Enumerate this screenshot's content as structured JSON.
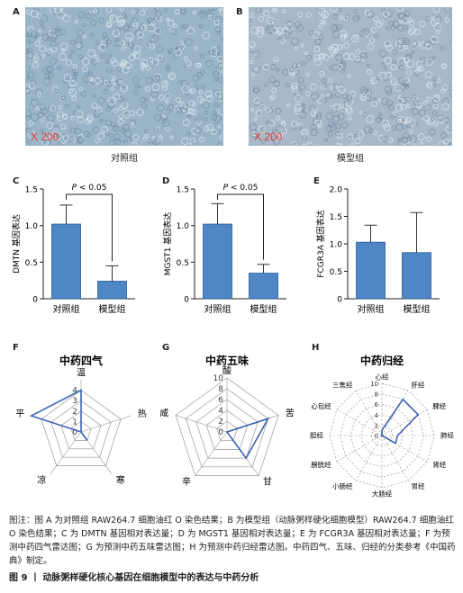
{
  "panels": {
    "A": {
      "letter": "A",
      "magnification": "X 200",
      "label": "对照组"
    },
    "B": {
      "letter": "B",
      "magnification": "X 200",
      "label": "模型组"
    }
  },
  "colors": {
    "bar": "#4f86c6",
    "bar_edge": "#2a5a99",
    "radar": "#3c63b0",
    "grid": "#999999",
    "mag": "#e23b3b",
    "micro_A": "#9ab5c8",
    "micro_B": "#a8b8c8"
  },
  "chart_data": [
    {
      "id": "C",
      "type": "bar",
      "categories": [
        "对照组",
        "模型组"
      ],
      "values": [
        1.02,
        0.24
      ],
      "errors": [
        0.26,
        0.21
      ],
      "ylabel": "DMTN 基因表达",
      "ylim": [
        0,
        1.5
      ],
      "yticks": [
        "0",
        "0.5",
        "1.0",
        "1.5"
      ],
      "annotation": "P < 0.05"
    },
    {
      "id": "D",
      "type": "bar",
      "categories": [
        "对照组",
        "模型组"
      ],
      "values": [
        1.02,
        0.35
      ],
      "errors": [
        0.28,
        0.12
      ],
      "ylabel": "MGST1 基因表达",
      "ylim": [
        0,
        1.5
      ],
      "yticks": [
        "0",
        "0.5",
        "1.0",
        "1.5"
      ],
      "annotation": "P < 0.05"
    },
    {
      "id": "E",
      "type": "bar",
      "categories": [
        "对照组",
        "模型组"
      ],
      "values": [
        1.03,
        0.84
      ],
      "errors": [
        0.31,
        0.73
      ],
      "ylabel": "FCGR3A 基因表达",
      "ylim": [
        0,
        2.0
      ],
      "yticks": [
        "0",
        "0.5",
        "1.0",
        "1.5",
        "2.0"
      ],
      "annotation": ""
    },
    {
      "id": "F",
      "type": "radar",
      "title": "中药四气",
      "axes": [
        "温",
        "热",
        "寒",
        "凉",
        "平"
      ],
      "values": [
        4,
        0,
        1,
        0,
        5
      ],
      "rmax": 5,
      "ticks": [
        "0",
        "1",
        "2",
        "3",
        "4"
      ]
    },
    {
      "id": "G",
      "type": "radar",
      "title": "中药五味",
      "axes": [
        "酸",
        "苦",
        "甘",
        "辛",
        "咸"
      ],
      "values": [
        0,
        8,
        6,
        0,
        0
      ],
      "rmax": 10,
      "ticks": [
        "0",
        "2",
        "4",
        "6",
        "8",
        "10"
      ]
    },
    {
      "id": "H",
      "type": "radar",
      "title": "中药归经",
      "axes": [
        "心经",
        "肝经",
        "脾经",
        "肺经",
        "肾经",
        "胃经",
        "大肠经",
        "小肠经",
        "膀胱经",
        "胆经",
        "心包经",
        "三焦经"
      ],
      "values": [
        1,
        8,
        8,
        3,
        3,
        0,
        0,
        0,
        0,
        0,
        0,
        0
      ],
      "rmax": 10,
      "ticks": [
        "0",
        "2",
        "4",
        "6",
        "8",
        "10"
      ]
    }
  ],
  "caption": "图注：图 A 为对照组 RAW264.7 细胞油红 O 染色结果；B 为模型组（动脉粥样硬化细胞模型）RAW264.7 细胞油红 O 染色结果；C 为 DMTN 基因相对表达量；D 为 MGST1 基因相对表达量；E 为 FCGR3A 基因相对表达量；F 为预测中药四气雷达图；G 为预测中药五味雷达图；H 为预测中药归经雷达图。中药四气、五味、归经的分类参考《中国药典》制定。",
  "figure_title": {
    "number": "图 9",
    "sep": "丨",
    "text": "动脉粥样硬化核心基因在细胞模型中的表达与中药分析"
  }
}
